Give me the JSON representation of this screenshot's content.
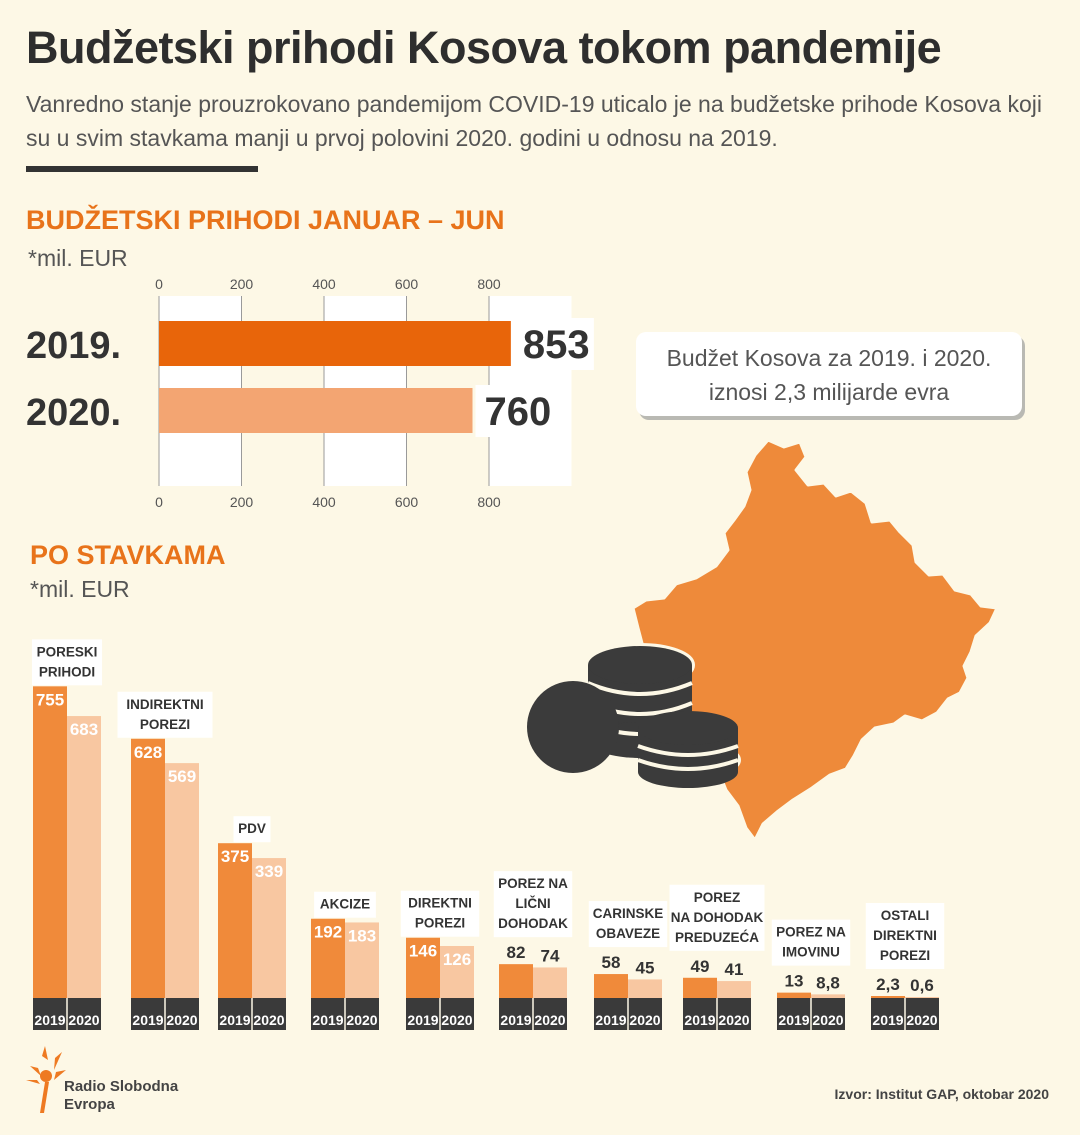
{
  "title": "Budžetski prihodi Kosova tokom pandemije",
  "subtitle": "Vanredno stanje prouzrokovano pandemijom COVID-19 uticalo je na budžetske prihode Kosova koji su u svim stavkama manji u prvoj polovini 2020. godini u odnosu na 2019.",
  "callout": {
    "line1": "Budžet Kosova za 2019. i 2020.",
    "line2": "iznosi 2,3 milijarde evra"
  },
  "logo": {
    "line1": "Radio Slobodna",
    "line2": "Evropa"
  },
  "source": "Izvor: Institut GAP, oktobar 2020",
  "colors": {
    "orange_dark": "#e8650a",
    "orange_light": "#f3a572",
    "col_2019": "#f08a3a",
    "col_2020": "#f8c7a1",
    "map": "#ee8a3a",
    "coins": "#3b3b3b",
    "heading": "#e8731a"
  },
  "icons": [
    "kosovo-map-icon",
    "coins-icon",
    "rse-logo-icon"
  ],
  "chart_data": [
    {
      "type": "bar",
      "orientation": "horizontal",
      "title": "BUDŽETSKI PRIHODI JANUAR – JUN",
      "unit": "*mil. EUR",
      "categories": [
        "2019.",
        "2020."
      ],
      "values": [
        853,
        760
      ],
      "value_labels": [
        "853",
        "760"
      ],
      "xlim": [
        0,
        900
      ],
      "ticks": [
        0,
        200,
        400,
        600,
        800
      ],
      "tick_labels": [
        "0",
        "200",
        "400",
        "600",
        "800"
      ],
      "grid": true
    },
    {
      "type": "bar",
      "title": "PO STAVKAMA",
      "unit": "*mil. EUR",
      "categories": [
        [
          "PORESKI",
          "PRIHODI"
        ],
        [
          "INDIREKTNI",
          "POREZI"
        ],
        [
          "PDV"
        ],
        [
          "AKCIZE"
        ],
        [
          "DIREKTNI",
          "POREZI"
        ],
        [
          "POREZ NA",
          "LIČNI",
          "DOHODAK"
        ],
        [
          "CARINSKE",
          "OBAVEZE"
        ],
        [
          "POREZ",
          "NA DOHODAK",
          "PREDUZEĆA"
        ],
        [
          "POREZ NA",
          "IMOVINU"
        ],
        [
          "OSTALI",
          "DIREKTNI",
          "POREZI"
        ]
      ],
      "series": [
        {
          "name": "2019",
          "values": [
            755,
            628,
            375,
            192,
            146,
            82,
            58,
            49,
            13,
            2.3
          ],
          "labels": [
            "755",
            "628",
            "375",
            "192",
            "146",
            "82",
            "58",
            "49",
            "13",
            "2,3"
          ]
        },
        {
          "name": "2020",
          "values": [
            683,
            569,
            339,
            183,
            126,
            74,
            45,
            41,
            8.8,
            0.6
          ],
          "labels": [
            "683",
            "569",
            "339",
            "183",
            "126",
            "74",
            "45",
            "41",
            "8,8",
            "0,6"
          ]
        }
      ]
    }
  ]
}
